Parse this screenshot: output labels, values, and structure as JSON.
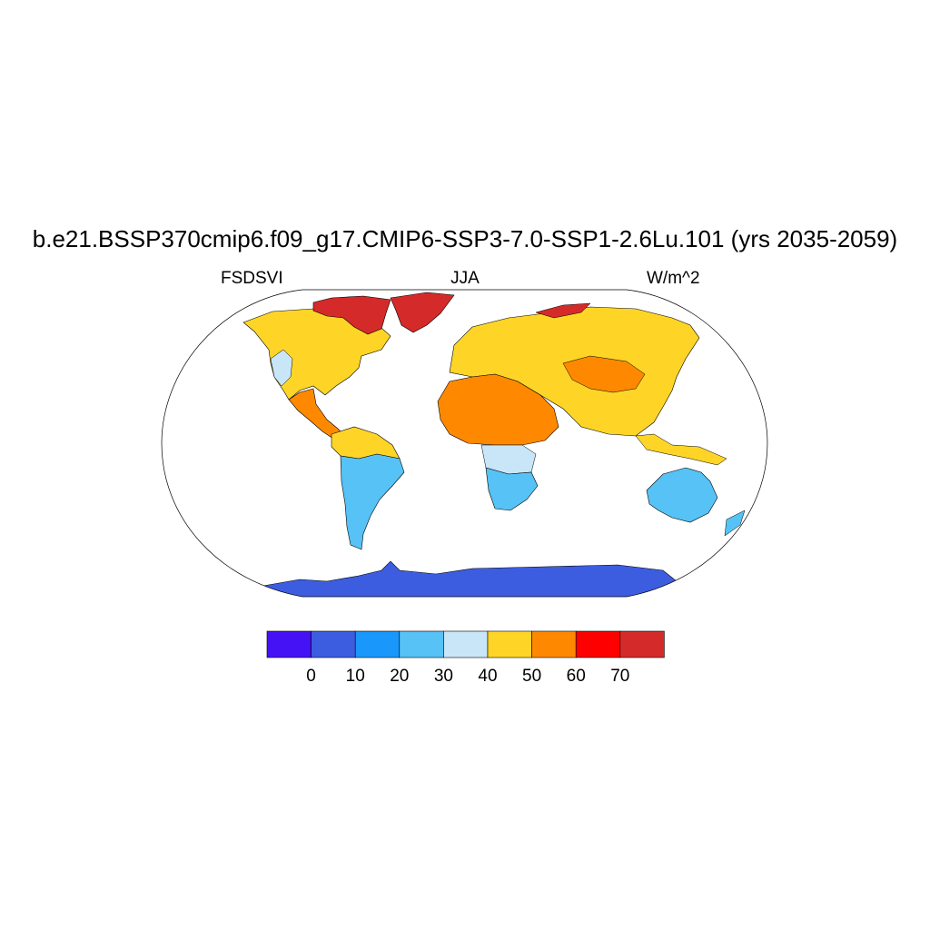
{
  "title": "b.e21.BSSP370cmip6.f09_g17.CMIP6-SSP3-7.0-SSP1-2.6Lu.101 (yrs 2035-2059)",
  "subtitle": {
    "left": "FSDSVI",
    "center": "JJA",
    "right": "W/m^2"
  },
  "colorbar": {
    "colors": [
      "#4512f5",
      "#3d5de0",
      "#1a97fa",
      "#56c2f5",
      "#c8e6f7",
      "#fed527",
      "#fe8900",
      "#fe0000",
      "#d52a2a"
    ],
    "tick_labels": [
      "0",
      "10",
      "20",
      "30",
      "40",
      "50",
      "60",
      "70"
    ]
  },
  "map": {
    "regions": [
      {
        "id": "north-america",
        "color": "#fed527"
      },
      {
        "id": "arctic-canada",
        "color": "#d52a2a"
      },
      {
        "id": "greenland",
        "color": "#d52a2a"
      },
      {
        "id": "western-us",
        "color": "#c8e6f7"
      },
      {
        "id": "central-america",
        "color": "#fe8900"
      },
      {
        "id": "south-america-north",
        "color": "#fed527"
      },
      {
        "id": "south-america-south",
        "color": "#56c2f5"
      },
      {
        "id": "europe-asia",
        "color": "#fed527"
      },
      {
        "id": "north-africa-arabia",
        "color": "#fe8900"
      },
      {
        "id": "tibet",
        "color": "#fe8900"
      },
      {
        "id": "siberia-north",
        "color": "#d52a2a"
      },
      {
        "id": "southern-africa",
        "color": "#56c2f5"
      },
      {
        "id": "equatorial-africa",
        "color": "#c8e6f7"
      },
      {
        "id": "australia",
        "color": "#56c2f5"
      },
      {
        "id": "southeast-asia",
        "color": "#fed527"
      },
      {
        "id": "antarctica",
        "color": "#3d5de0"
      }
    ]
  }
}
